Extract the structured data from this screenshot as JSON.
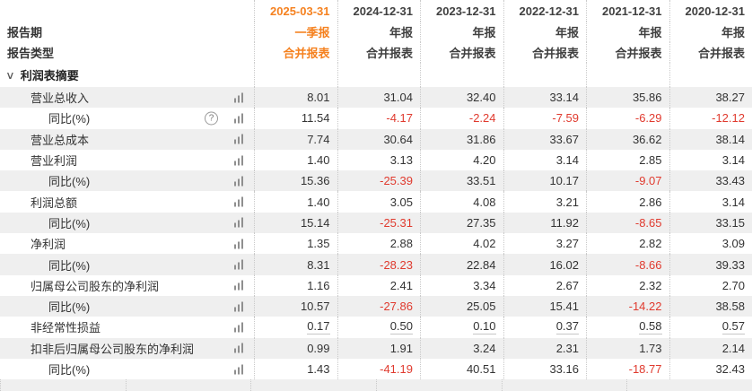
{
  "header": {
    "period_label": "报告期",
    "type_label": "报告类型",
    "columns": [
      {
        "date": "2025-03-31",
        "period": "一季报",
        "type": "合并报表",
        "highlight": true
      },
      {
        "date": "2024-12-31",
        "period": "年报",
        "type": "合并报表",
        "highlight": false
      },
      {
        "date": "2023-12-31",
        "period": "年报",
        "type": "合并报表",
        "highlight": false
      },
      {
        "date": "2022-12-31",
        "period": "年报",
        "type": "合并报表",
        "highlight": false
      },
      {
        "date": "2021-12-31",
        "period": "年报",
        "type": "合并报表",
        "highlight": false
      },
      {
        "date": "2020-12-31",
        "period": "年报",
        "type": "合并报表",
        "highlight": false
      }
    ]
  },
  "section": {
    "title": "利润表摘要",
    "chevron": "∨",
    "expanded": true
  },
  "icons": {
    "trend": "bar-chart-icon",
    "help_glyph": "?"
  },
  "colors": {
    "accent_orange": "#f5811f",
    "negative_red": "#e03a2e",
    "stripe_gray": "#efefef",
    "text": "#333333",
    "icon_gray": "#8f8f8f"
  },
  "rows": [
    {
      "label": "营业总收入",
      "indent": 1,
      "help": false,
      "underline": false,
      "values": [
        "8.01",
        "31.04",
        "32.40",
        "33.14",
        "35.86",
        "38.27"
      ]
    },
    {
      "label": "同比(%)",
      "indent": 2,
      "help": true,
      "underline": false,
      "values": [
        "11.54",
        "-4.17",
        "-2.24",
        "-7.59",
        "-6.29",
        "-12.12"
      ]
    },
    {
      "label": "营业总成本",
      "indent": 1,
      "help": false,
      "underline": false,
      "values": [
        "7.74",
        "30.64",
        "31.86",
        "33.67",
        "36.62",
        "38.14"
      ]
    },
    {
      "label": "营业利润",
      "indent": 1,
      "help": false,
      "underline": false,
      "values": [
        "1.40",
        "3.13",
        "4.20",
        "3.14",
        "2.85",
        "3.14"
      ]
    },
    {
      "label": "同比(%)",
      "indent": 2,
      "help": false,
      "underline": false,
      "values": [
        "15.36",
        "-25.39",
        "33.51",
        "10.17",
        "-9.07",
        "33.43"
      ]
    },
    {
      "label": "利润总额",
      "indent": 1,
      "help": false,
      "underline": false,
      "values": [
        "1.40",
        "3.05",
        "4.08",
        "3.21",
        "2.86",
        "3.14"
      ]
    },
    {
      "label": "同比(%)",
      "indent": 2,
      "help": false,
      "underline": false,
      "values": [
        "15.14",
        "-25.31",
        "27.35",
        "11.92",
        "-8.65",
        "33.15"
      ]
    },
    {
      "label": "净利润",
      "indent": 1,
      "help": false,
      "underline": false,
      "values": [
        "1.35",
        "2.88",
        "4.02",
        "3.27",
        "2.82",
        "3.09"
      ]
    },
    {
      "label": "同比(%)",
      "indent": 2,
      "help": false,
      "underline": false,
      "values": [
        "8.31",
        "-28.23",
        "22.84",
        "16.02",
        "-8.66",
        "39.33"
      ]
    },
    {
      "label": "归属母公司股东的净利润",
      "indent": 1,
      "help": false,
      "underline": false,
      "values": [
        "1.16",
        "2.41",
        "3.34",
        "2.67",
        "2.32",
        "2.70"
      ]
    },
    {
      "label": "同比(%)",
      "indent": 2,
      "help": false,
      "underline": false,
      "values": [
        "10.57",
        "-27.86",
        "25.05",
        "15.41",
        "-14.22",
        "38.58"
      ]
    },
    {
      "label": "非经常性损益",
      "indent": 1,
      "help": false,
      "underline": true,
      "values": [
        "0.17",
        "0.50",
        "0.10",
        "0.37",
        "0.58",
        "0.57"
      ]
    },
    {
      "label": "扣非后归属母公司股东的净利润",
      "indent": 1,
      "help": false,
      "underline": false,
      "values": [
        "0.99",
        "1.91",
        "3.24",
        "2.31",
        "1.73",
        "2.14"
      ]
    },
    {
      "label": "同比(%)",
      "indent": 2,
      "help": false,
      "underline": false,
      "values": [
        "1.43",
        "-41.19",
        "40.51",
        "33.16",
        "-18.77",
        "32.43"
      ]
    }
  ]
}
